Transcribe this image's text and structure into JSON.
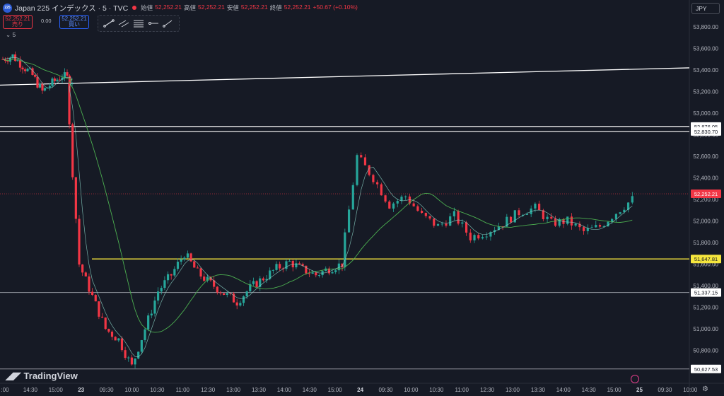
{
  "header": {
    "badge": "225",
    "title": "Japan 225 インデックス · 5 · TVC",
    "ohlc": [
      {
        "label": "始値",
        "value": "52,252.21"
      },
      {
        "label": "高値",
        "value": "52,252.21"
      },
      {
        "label": "安値",
        "value": "52,252.21"
      },
      {
        "label": "終値",
        "value": "52,252.21"
      }
    ],
    "change": "+50.67 (+0.10%)"
  },
  "trade": {
    "sell_price": "52,252.21",
    "sell_label": "売り",
    "spread": "0.00",
    "buy_price": "52,252.21",
    "buy_label": "買い"
  },
  "indicator": {
    "label": "5"
  },
  "toolbar": {
    "icons": [
      "trend-line-icon",
      "parallel-channel-icon",
      "fib-retracement-icon",
      "horizontal-ray-icon",
      "arrow-line-icon"
    ]
  },
  "currency": "JPY",
  "logo": {
    "text": "TradingView"
  },
  "colors": {
    "background": "#161a25",
    "up": "#26a69a",
    "down": "#f23645",
    "key_level": "#f5e63d",
    "line": "#ffffff",
    "ma": "#4caf50"
  },
  "chart_data": {
    "type": "candlestick",
    "y_ticks": [
      "53,800.00",
      "53,600.00",
      "53,400.00",
      "53,200.00",
      "53,000.00",
      "52,800.00",
      "52,600.00",
      "52,400.00",
      "52,200.00",
      "52,000.00",
      "51,800.00",
      "51,600.00",
      "51,400.00",
      "51,200.00",
      "51,000.00",
      "50,800.00"
    ],
    "x_ticks": [
      ":00",
      "14:30",
      "15:00",
      "23",
      "09:30",
      "10:00",
      "10:30",
      "11:00",
      "12:30",
      "13:00",
      "13:30",
      "14:00",
      "14:30",
      "15:00",
      "24",
      "09:30",
      "10:00",
      "10:30",
      "11:00",
      "12:30",
      "13:00",
      "13:30",
      "14:00",
      "14:30",
      "15:00",
      "25",
      "09:30",
      "10:00"
    ],
    "x_tick_bold": [
      "23",
      "24",
      "25"
    ],
    "levels": [
      {
        "label": "52,876.05",
        "value": 52876.05,
        "color": "#ffffff",
        "lw": 1.2
      },
      {
        "label": "52,830.70",
        "value": 52830.7,
        "color": "#ffffff",
        "lw": 1.2
      },
      {
        "label": "51,647.81",
        "value": 51647.81,
        "color": "#f5e63d",
        "lw": 1.4
      },
      {
        "label": "51,337.15",
        "value": 51337.15,
        "color": "#9598a1",
        "lw": 1
      },
      {
        "label": "50,627.53",
        "value": 50627.53,
        "color": "#9598a1",
        "lw": 1
      }
    ],
    "last_price": {
      "label": "52,252.21",
      "value": 52252.21,
      "color": "#f23645"
    },
    "trend_line": {
      "from": [
        0,
        53260
      ],
      "to": [
        1,
        53420
      ]
    },
    "close_path": [
      [
        0,
        53500
      ],
      [
        1,
        53530
      ],
      [
        2,
        53440
      ],
      [
        3,
        53350
      ],
      [
        4,
        53200
      ],
      [
        5,
        53280
      ],
      [
        6,
        53350
      ],
      [
        7,
        53300
      ],
      [
        8,
        51600
      ],
      [
        9,
        51300
      ],
      [
        10,
        51000
      ],
      [
        11,
        50900
      ],
      [
        12,
        50650
      ],
      [
        13,
        51000
      ],
      [
        14,
        51350
      ],
      [
        15,
        51500
      ],
      [
        16,
        51700
      ],
      [
        17,
        51520
      ],
      [
        18,
        51420
      ],
      [
        19,
        51330
      ],
      [
        20,
        51250
      ],
      [
        21,
        51380
      ],
      [
        22,
        51470
      ],
      [
        23,
        51560
      ],
      [
        24,
        51620
      ],
      [
        25,
        51550
      ],
      [
        26,
        51500
      ],
      [
        27,
        51560
      ],
      [
        28,
        51600
      ],
      [
        29,
        52600
      ],
      [
        30,
        52400
      ],
      [
        31,
        52150
      ],
      [
        32,
        52230
      ],
      [
        33,
        52050
      ],
      [
        34,
        51950
      ],
      [
        35,
        52050
      ],
      [
        36,
        51850
      ],
      [
        37,
        51900
      ],
      [
        38,
        51980
      ],
      [
        39,
        52080
      ],
      [
        40,
        52120
      ],
      [
        41,
        51980
      ],
      [
        42,
        52000
      ],
      [
        43,
        51900
      ],
      [
        44,
        51950
      ],
      [
        45,
        52080
      ],
      [
        46,
        52200
      ]
    ]
  }
}
